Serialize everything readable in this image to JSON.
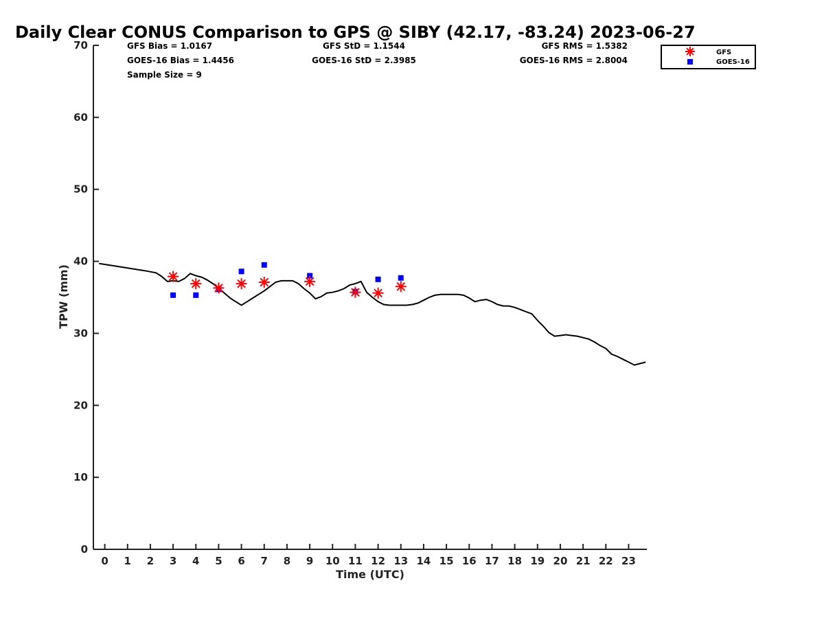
{
  "chart_data": {
    "type": "scatter",
    "title": "Daily Clear CONUS Comparison to GPS @ SIBY (42.17, -83.24) 2023-06-27",
    "xlabel": "Time (UTC)",
    "ylabel": "TPW (mm)",
    "xlim": [
      -0.5,
      23.8
    ],
    "ylim": [
      0,
      70
    ],
    "xticks": [
      0,
      1,
      2,
      3,
      4,
      5,
      6,
      7,
      8,
      9,
      10,
      11,
      12,
      13,
      14,
      15,
      16,
      17,
      18,
      19,
      20,
      21,
      22,
      23
    ],
    "xtick_labels": [
      "0",
      "1",
      "2",
      "3",
      "4",
      "5",
      "6",
      "7",
      "8",
      "9",
      "10",
      "11",
      "12",
      "13",
      "14",
      "15",
      "16",
      "17",
      "18",
      "19",
      "20",
      "21",
      "22",
      "23"
    ],
    "yticks": [
      0,
      10,
      20,
      30,
      40,
      50,
      60,
      70
    ],
    "ytick_labels": [
      "0",
      "10",
      "20",
      "30",
      "40",
      "50",
      "60",
      "70"
    ],
    "grid": false,
    "legend": {
      "placement": "top-right",
      "entries": [
        "GFS",
        "GOES-16"
      ]
    },
    "stats": {
      "gfs_bias": "GFS Bias = 1.0167",
      "goes_bias": "GOES-16 Bias = 1.4456",
      "sample_size": "Sample Size = 9",
      "gfs_std": "GFS StD = 1.1544",
      "goes_std": "GOES-16 StD = 2.3985",
      "gfs_rms": "GFS RMS = 1.5382",
      "goes_rms": "GOES-16 RMS = 2.8004"
    },
    "series": [
      {
        "kind": "line",
        "color": "#000000",
        "x": [
          -0.25,
          0.75,
          1.75,
          2.25,
          2.5,
          2.75,
          3.0,
          3.25,
          3.5,
          3.75,
          4.0,
          4.25,
          4.5,
          4.75,
          5.0,
          5.25,
          5.5,
          5.75,
          6.0,
          6.25,
          6.5,
          6.75,
          7.0,
          7.25,
          7.5,
          7.75,
          8.0,
          8.25,
          8.5,
          8.75,
          9.0,
          9.25,
          9.5,
          9.75,
          10.0,
          10.25,
          10.5,
          10.75,
          11.0,
          11.25,
          11.5,
          11.75,
          12.0,
          12.25,
          12.5,
          12.75,
          13.0,
          13.25,
          13.5,
          13.75,
          14.0,
          14.25,
          14.5,
          14.75,
          15.0,
          15.25,
          15.5,
          15.75,
          16.0,
          16.25,
          16.5,
          16.75,
          17.0,
          17.25,
          17.5,
          17.75,
          18.0,
          18.25,
          18.5,
          18.75,
          19.0,
          19.25,
          19.5,
          19.75,
          20.0,
          20.25,
          20.5,
          20.75,
          21.0,
          21.25,
          21.5,
          21.75,
          22.0,
          22.25,
          22.5,
          22.75,
          23.0,
          23.25,
          23.5,
          23.75
        ],
        "y": [
          39.7,
          39.2,
          38.7,
          38.4,
          37.9,
          37.2,
          37.3,
          37.2,
          37.6,
          38.3,
          38.0,
          37.8,
          37.4,
          36.9,
          36.3,
          35.6,
          34.9,
          34.4,
          33.9,
          34.4,
          34.9,
          35.4,
          35.9,
          36.5,
          37.1,
          37.3,
          37.3,
          37.3,
          36.9,
          36.2,
          35.6,
          34.8,
          35.1,
          35.6,
          35.7,
          35.9,
          36.2,
          36.7,
          36.9,
          37.2,
          35.7,
          35.0,
          34.4,
          34.0,
          33.9,
          33.9,
          33.9,
          33.9,
          34.0,
          34.2,
          34.6,
          35.0,
          35.3,
          35.4,
          35.4,
          35.4,
          35.4,
          35.3,
          34.9,
          34.4,
          34.6,
          34.7,
          34.4,
          34.0,
          33.8,
          33.8,
          33.6,
          33.3,
          33.0,
          32.7,
          31.8,
          31.0,
          30.1,
          29.6,
          29.7,
          29.8,
          29.7,
          29.6,
          29.4,
          29.2,
          28.8,
          28.3,
          27.9,
          27.1,
          26.8,
          26.4,
          26.0,
          25.6,
          25.8,
          26.0
        ]
      },
      {
        "name": "GFS",
        "kind": "scatter",
        "marker": "asterisk",
        "color": "#ff0000",
        "x": [
          3,
          4,
          5,
          6,
          7,
          9,
          11,
          12,
          13
        ],
        "y": [
          37.9,
          36.9,
          36.3,
          36.9,
          37.1,
          37.2,
          35.7,
          35.6,
          36.5
        ]
      },
      {
        "name": "GOES-16",
        "kind": "scatter",
        "marker": "square",
        "color": "#0000ff",
        "x": [
          3,
          4,
          5,
          6,
          7,
          9,
          11,
          12,
          13
        ],
        "y": [
          35.3,
          35.3,
          36.1,
          38.6,
          39.5,
          38.0,
          35.8,
          37.5,
          37.7
        ]
      }
    ]
  }
}
